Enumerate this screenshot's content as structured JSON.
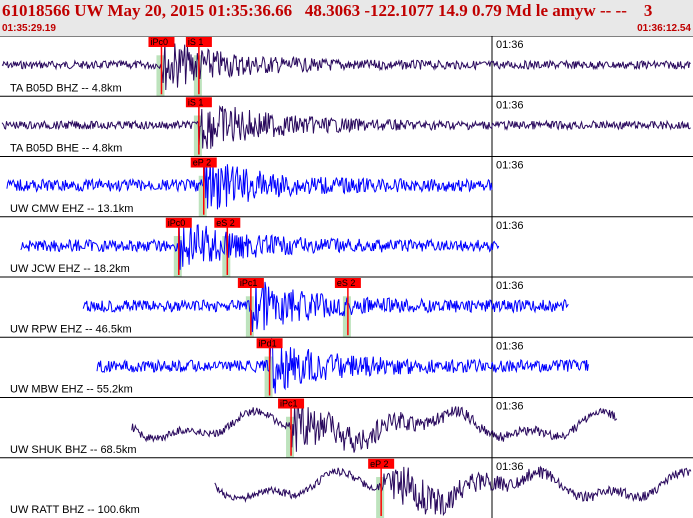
{
  "header": {
    "title": "61018566 UW May 20, 2015 01:35:36.66   48.3063 -122.1077 14.9 0.79 Md le amyw -- --    3",
    "start_time": "01:35:29.19",
    "end_time": "01:36:12.54"
  },
  "colors": {
    "header_text": "#c00000",
    "pick": "#ff0000",
    "window": "#bde3bd",
    "trace_purple": "#2a0a5e",
    "trace_blue": "#0000ff"
  },
  "traces": [
    {
      "station": "TA B05D BHZ -- 4.8km",
      "time_mark": "01:36",
      "color": "#2a0a5e",
      "picks": [
        {
          "label": "iPc0",
          "t": 0.233
        },
        {
          "label": "iS 1",
          "t": 0.287
        }
      ],
      "signal": [
        0.0,
        1.0
      ]
    },
    {
      "station": "TA B05D BHE -- 4.8km",
      "time_mark": "01:36",
      "color": "#2a0a5e",
      "picks": [
        {
          "label": "iS 1",
          "t": 0.287
        }
      ],
      "signal": [
        0.0,
        1.0
      ]
    },
    {
      "station": "UW CMW EHZ -- 13.1km",
      "time_mark": "01:36",
      "color": "#0000ff",
      "picks": [
        {
          "label": "eP 2",
          "t": 0.294
        }
      ],
      "signal": [
        0.01,
        0.71
      ]
    },
    {
      "station": "UW JCW EHZ -- 18.2km",
      "time_mark": "01:36",
      "color": "#0000ff",
      "picks": [
        {
          "label": "iPc0",
          "t": 0.258
        },
        {
          "label": "eS 2",
          "t": 0.328
        }
      ],
      "signal": [
        0.03,
        0.72
      ]
    },
    {
      "station": "UW RPW EHZ -- 46.5km",
      "time_mark": "01:36",
      "color": "#0000ff",
      "picks": [
        {
          "label": "iPc1",
          "t": 0.362
        },
        {
          "label": "eS 2",
          "t": 0.502
        }
      ],
      "signal": [
        0.12,
        0.82
      ]
    },
    {
      "station": "UW MBW EHZ -- 55.2km",
      "time_mark": "01:36",
      "color": "#0000ff",
      "picks": [
        {
          "label": "iPd1",
          "t": 0.389
        }
      ],
      "signal": [
        0.14,
        0.85
      ]
    },
    {
      "station": "UW SHUK BHZ -- 68.5km",
      "time_mark": "01:36",
      "color": "#2a0a5e",
      "picks": [
        {
          "label": "iPc1",
          "t": 0.42
        }
      ],
      "signal": [
        0.19,
        0.89
      ]
    },
    {
      "station": "UW RATT BHZ -- 100.6km",
      "time_mark": "01:36",
      "color": "#2a0a5e",
      "picks": [
        {
          "label": "eP 2",
          "t": 0.55
        }
      ],
      "signal": [
        0.31,
        1.0
      ]
    }
  ]
}
